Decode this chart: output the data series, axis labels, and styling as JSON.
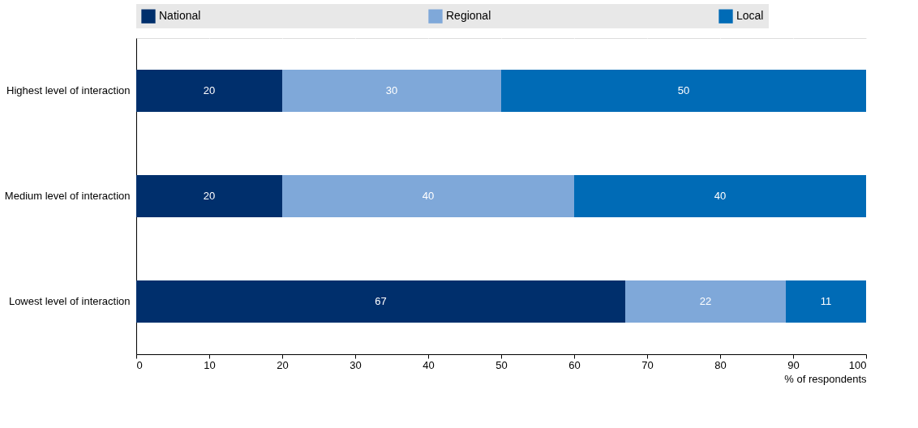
{
  "chart_data": {
    "type": "bar",
    "orientation": "horizontal",
    "stacked": true,
    "categories": [
      "Highest level of interaction",
      "Medium level of interaction",
      "Lowest level of interaction"
    ],
    "series": [
      {
        "name": "National",
        "color": "#002f6c",
        "values": [
          20,
          20,
          67
        ]
      },
      {
        "name": "Regional",
        "color": "#7fa8d9",
        "values": [
          30,
          40,
          22
        ]
      },
      {
        "name": "Local",
        "color": "#006bb6",
        "values": [
          50,
          40,
          11
        ]
      }
    ],
    "xlabel": "% of respondents",
    "xlim": [
      0,
      100
    ],
    "xticks": [
      0,
      10,
      20,
      30,
      40,
      50,
      60,
      70,
      80,
      90,
      100
    ],
    "grid": "x",
    "legend": "top",
    "data_labels": true
  }
}
